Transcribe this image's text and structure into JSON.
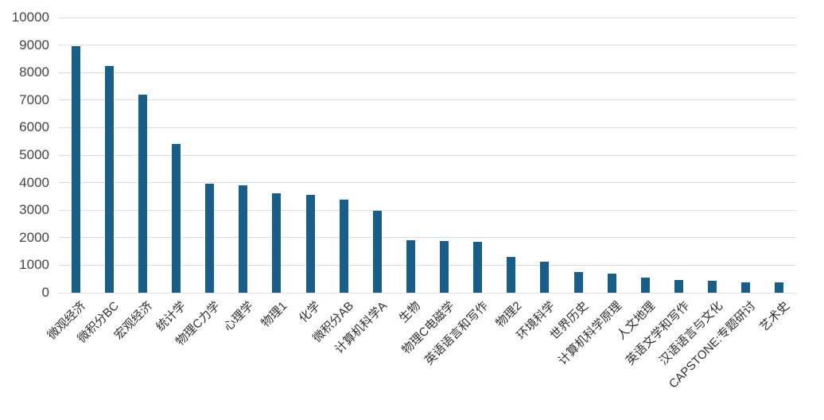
{
  "chart_data": {
    "type": "bar",
    "title": "",
    "xlabel": "",
    "ylabel": "",
    "categories": [
      "微观经济",
      "微积分BC",
      "宏观经济",
      "统计学",
      "物理C力学",
      "心理学",
      "物理1",
      "化学",
      "微积分AB",
      "计算机科学A",
      "生物",
      "物理C电磁学",
      "英语语言和写作",
      "物理2",
      "环境科学",
      "世界历史",
      "计算机科学原理",
      "人文地理",
      "英语文学和写作",
      "汉语语言与文化",
      "CAPSTONE:专题研讨",
      "艺术史"
    ],
    "values": [
      8950,
      8250,
      7200,
      5400,
      3950,
      3900,
      3600,
      3550,
      3380,
      2980,
      1900,
      1870,
      1860,
      1300,
      1120,
      750,
      700,
      550,
      450,
      430,
      390,
      370
    ],
    "ylim": [
      0,
      10000
    ],
    "yticks": [
      0,
      1000,
      2000,
      3000,
      4000,
      5000,
      6000,
      7000,
      8000,
      9000,
      10000
    ],
    "grid": "horizontal",
    "x_label_rotation_deg": 45,
    "legend": "none",
    "colors": {
      "bar": "#175e8a",
      "gridline": "#dcdcdc",
      "y_tick_text": "#454545",
      "x_tick_text": "#303030",
      "background": "#ffffff"
    }
  }
}
